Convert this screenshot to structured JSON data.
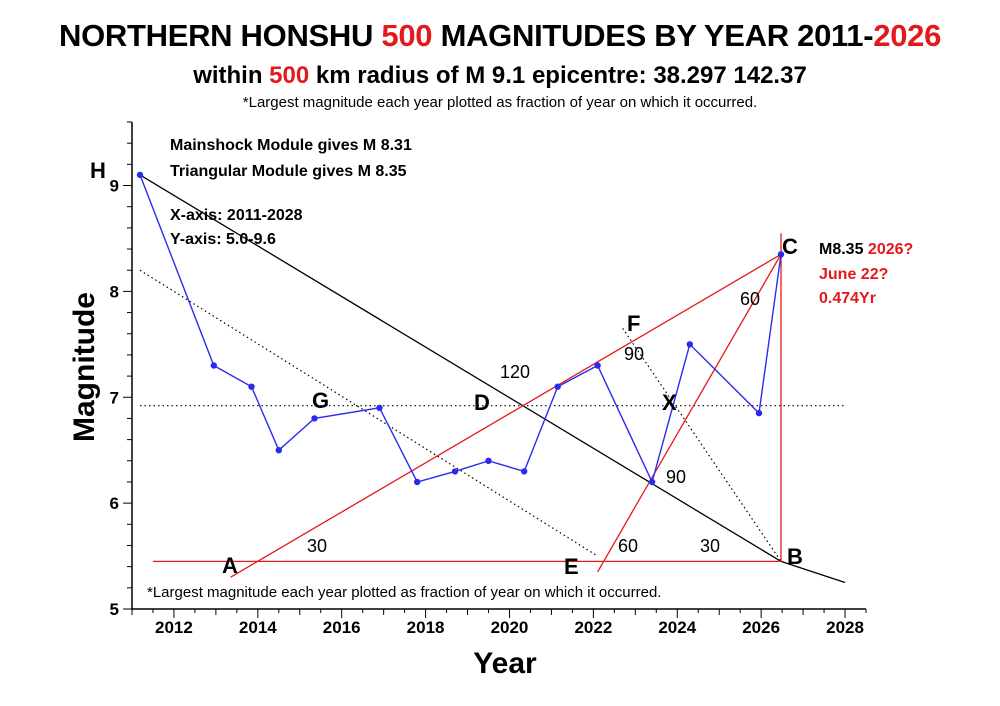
{
  "header": {
    "title_pre": "NORTHERN HONSHU ",
    "title_red1": "500",
    "title_mid": " MAGNITUDES BY YEAR 2011-",
    "title_red2": "2026",
    "subtitle_pre": "within ",
    "subtitle_red": "500",
    "subtitle_post": " km radius of M 9.1 epicentre: 38.297 142.37",
    "note": "*Largest magnitude each year plotted as fraction of year on which it occurred."
  },
  "annotations": {
    "mainshock": "Mainshock Module gives M 8.31",
    "triangular": "Triangular Module gives M 8.35",
    "xaxis_range": "X-axis: 2011-2028",
    "yaxis_range": "Y-axis: 5.0-9.6",
    "c_mag": "M8.35",
    "c_year": "2026?",
    "c_date": "June 22?",
    "c_frac": "0.474Yr",
    "bottom_note": "*Largest magnitude each year plotted as fraction of year on which it occurred."
  },
  "point_labels": {
    "H": "H",
    "C": "C",
    "F": "F",
    "G": "G",
    "D": "D",
    "X": "X",
    "A": "A",
    "E": "E",
    "B": "B"
  },
  "angle_labels": {
    "a120": "120",
    "a90_f": "90",
    "a60_c": "60",
    "a90_x": "90",
    "a30_a": "30",
    "a60_e": "60",
    "a30_b": "30"
  },
  "colors": {
    "series": "#2b2bf0",
    "construction": "#e3191b",
    "trend": "#000000",
    "accent_text": "#e3191b"
  },
  "chart_data": {
    "type": "line",
    "xlabel": "Year",
    "ylabel": "Magnitude",
    "xlim": [
      2011,
      2028.5
    ],
    "ylim": [
      5.0,
      9.6
    ],
    "xticks": [
      2012,
      2014,
      2016,
      2018,
      2020,
      2022,
      2024,
      2026,
      2028
    ],
    "yticks": [
      5,
      6,
      7,
      8,
      9
    ],
    "series": [
      {
        "x": [
          2011.19,
          2012.95,
          2013.85,
          2014.5,
          2015.35,
          2016.9,
          2017.8,
          2018.7,
          2019.5,
          2020.35,
          2021.15,
          2022.1,
          2023.4,
          2024.3,
          2025.95,
          2026.474
        ],
        "y": [
          9.1,
          7.3,
          7.1,
          6.5,
          6.8,
          6.9,
          6.2,
          6.3,
          6.4,
          6.3,
          7.1,
          7.3,
          6.2,
          7.5,
          6.85,
          8.35
        ]
      }
    ],
    "construction": {
      "trend_H_B": [
        [
          2011.19,
          9.1
        ],
        [
          2026.474,
          5.45
        ],
        [
          2028.0,
          5.25
        ]
      ],
      "dotted_upper": [
        [
          2011.19,
          8.2
        ],
        [
          2022.1,
          5.5
        ]
      ],
      "dotted_F_B": [
        [
          2022.7,
          7.65
        ],
        [
          2026.474,
          5.45
        ]
      ],
      "horizontal_G_X": [
        [
          2011.19,
          6.92
        ],
        [
          2028.0,
          6.92
        ]
      ],
      "red_A_B": [
        [
          2011.5,
          5.45
        ],
        [
          2026.474,
          5.45
        ]
      ],
      "red_A_C": [
        [
          2013.35,
          5.3
        ],
        [
          2026.474,
          8.35
        ]
      ],
      "red_E_C": [
        [
          2022.1,
          5.35
        ],
        [
          2026.474,
          8.35
        ]
      ],
      "red_vertical_C": [
        [
          2026.474,
          5.45
        ],
        [
          2026.474,
          8.55
        ]
      ]
    }
  }
}
